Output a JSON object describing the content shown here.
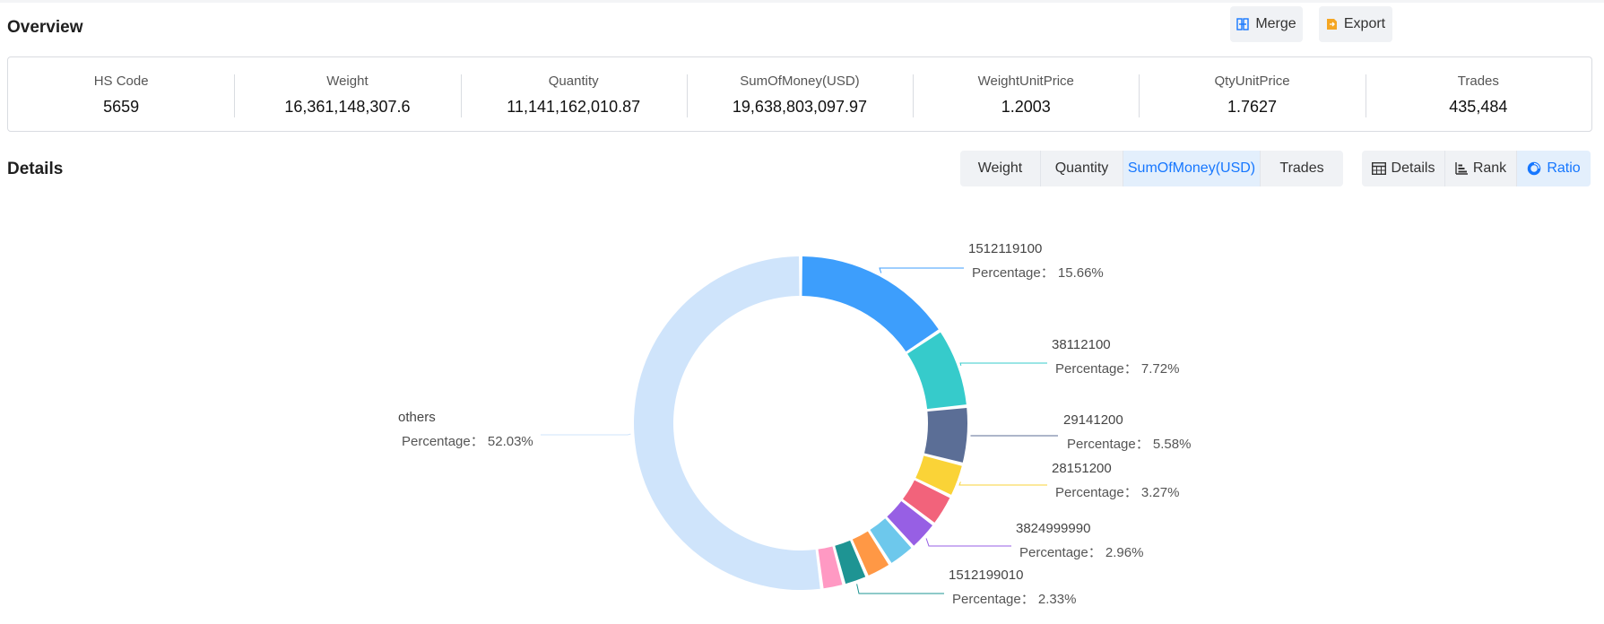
{
  "overview": {
    "title": "Overview",
    "merge_label": "Merge",
    "export_label": "Export",
    "stats": [
      {
        "label": "HS Code",
        "value": "5659"
      },
      {
        "label": "Weight",
        "value": "16,361,148,307.6"
      },
      {
        "label": "Quantity",
        "value": "11,141,162,010.87"
      },
      {
        "label": "SumOfMoney(USD)",
        "value": "19,638,803,097.97"
      },
      {
        "label": "WeightUnitPrice",
        "value": "1.2003"
      },
      {
        "label": "QtyUnitPrice",
        "value": "1.7627"
      },
      {
        "label": "Trades",
        "value": "435,484"
      }
    ]
  },
  "details": {
    "title": "Details",
    "metric_tabs": [
      "Weight",
      "Quantity",
      "SumOfMoney(USD)",
      "Trades"
    ],
    "active_metric": "SumOfMoney(USD)",
    "view_tabs": [
      {
        "label": "Details",
        "icon": "table-icon"
      },
      {
        "label": "Rank",
        "icon": "bar-rank-icon"
      },
      {
        "label": "Ratio",
        "icon": "donut-icon"
      }
    ],
    "active_view": "Ratio"
  },
  "colors": {
    "accent": "#1677ff",
    "active_tab_bg": "#e3effc"
  },
  "chart_data": {
    "type": "pie",
    "variant": "donut",
    "percentage_prefix": "Percentage：",
    "slices": [
      {
        "name": "1512119100",
        "value": 15.66,
        "color": "#3d9efc",
        "labeled": true
      },
      {
        "name": "38112100",
        "value": 7.72,
        "color": "#36cbcb",
        "labeled": true
      },
      {
        "name": "29141200",
        "value": 5.58,
        "color": "#5b6e96",
        "labeled": true
      },
      {
        "name": "28151200",
        "value": 3.27,
        "color": "#fad337",
        "labeled": true
      },
      {
        "name": "",
        "value": 3.1,
        "color": "#f2637b",
        "labeled": false
      },
      {
        "name": "3824999990",
        "value": 2.96,
        "color": "#975fe4",
        "labeled": true
      },
      {
        "name": "",
        "value": 2.7,
        "color": "#6dc8ec",
        "labeled": false
      },
      {
        "name": "",
        "value": 2.5,
        "color": "#ff9845",
        "labeled": false
      },
      {
        "name": "1512199010",
        "value": 2.33,
        "color": "#1e9493",
        "labeled": true
      },
      {
        "name": "",
        "value": 2.15,
        "color": "#ff99c3",
        "labeled": false
      },
      {
        "name": "others",
        "value": 52.03,
        "color": "#cfe4fb",
        "labeled": true
      }
    ]
  }
}
